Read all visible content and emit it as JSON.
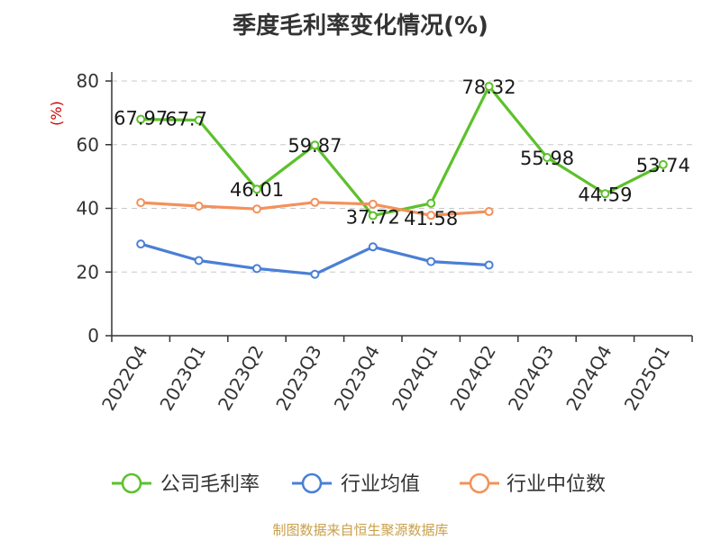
{
  "title": "季度毛利率变化情况(%)",
  "footer": "制图数据来自恒生聚源数据库",
  "chart_data": {
    "type": "line",
    "title": "季度毛利率变化情况(%)",
    "ylabel": "(%)",
    "ylabel_color": "#cc0000",
    "ylim": [
      0,
      80
    ],
    "yticks": [
      0,
      20,
      40,
      60,
      80
    ],
    "grid": true,
    "legend_position": "bottom",
    "categories": [
      "2022Q4",
      "2023Q1",
      "2023Q2",
      "2023Q3",
      "2023Q4",
      "2024Q1",
      "2024Q2",
      "2024Q3",
      "2024Q4",
      "2025Q1"
    ],
    "series": [
      {
        "name": "公司毛利率",
        "color": "#5cc12b",
        "values": [
          67.97,
          67.7,
          46.01,
          59.87,
          37.72,
          41.58,
          78.32,
          55.98,
          44.59,
          53.74
        ],
        "labels": [
          "67.97",
          "67.7",
          "46.01",
          "59.87",
          "37.72",
          "41.58",
          "78.32",
          "55.98",
          "44.59",
          "53.74"
        ]
      },
      {
        "name": "行业均值",
        "color": "#4a7fd6",
        "values": [
          28.8,
          23.6,
          21.1,
          19.3,
          27.9,
          23.3,
          22.2,
          null,
          null,
          null
        ]
      },
      {
        "name": "行业中位数",
        "color": "#f4915a",
        "values": [
          41.8,
          40.7,
          39.8,
          41.9,
          41.3,
          37.8,
          39.0,
          null,
          null,
          null
        ]
      }
    ]
  }
}
